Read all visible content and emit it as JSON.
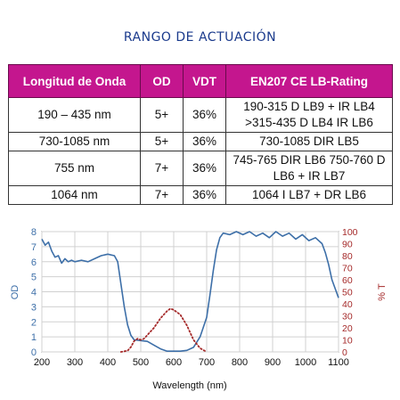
{
  "title": "RANGO DE ACTUACIÓN",
  "table": {
    "headers": [
      "Longitud de Onda",
      "OD",
      "VDT",
      "EN207 CE LB-Rating"
    ],
    "rows": [
      {
        "wavelength": "190 – 435 nm",
        "od": "5+",
        "vdt": "36%",
        "rating": "190-315 D LB9 + IR LB4 >315-435 D LB4 IR LB6"
      },
      {
        "wavelength": "730-1085 nm",
        "od": "5+",
        "vdt": "36%",
        "rating": "730-1085 DIR LB5"
      },
      {
        "wavelength": "755 nm",
        "od": "7+",
        "vdt": "36%",
        "rating": "745-765 DIR LB6 750-760 D LB6 + IR LB7"
      },
      {
        "wavelength": "1064 nm",
        "od": "7+",
        "vdt": "36%",
        "rating": "1064 I LB7 + DR LB6"
      }
    ]
  },
  "chart_data": {
    "type": "line",
    "title": "",
    "xlabel": "Wavelength (nm)",
    "ylabel": "OD",
    "y2label": "% T",
    "xlim": [
      200,
      1100
    ],
    "ylim": [
      0,
      8
    ],
    "y2lim": [
      0,
      100
    ],
    "x_ticks": [
      200,
      300,
      400,
      500,
      600,
      700,
      800,
      900,
      1000,
      1100
    ],
    "y_ticks": [
      0,
      1,
      2,
      3,
      4,
      5,
      6,
      7,
      8
    ],
    "y2_ticks": [
      0,
      10,
      20,
      30,
      40,
      50,
      60,
      70,
      80,
      90,
      100
    ],
    "grid": true,
    "series": [
      {
        "axis": "left",
        "style": "solid",
        "color": "#3d6fa8",
        "points": [
          [
            200,
            7.5
          ],
          [
            210,
            7.1
          ],
          [
            220,
            7.3
          ],
          [
            230,
            6.7
          ],
          [
            240,
            6.3
          ],
          [
            250,
            6.4
          ],
          [
            260,
            5.9
          ],
          [
            270,
            6.2
          ],
          [
            280,
            6.0
          ],
          [
            290,
            6.1
          ],
          [
            300,
            6.0
          ],
          [
            320,
            6.1
          ],
          [
            340,
            6.0
          ],
          [
            360,
            6.2
          ],
          [
            380,
            6.4
          ],
          [
            400,
            6.5
          ],
          [
            420,
            6.4
          ],
          [
            430,
            6.0
          ],
          [
            440,
            4.5
          ],
          [
            450,
            3.0
          ],
          [
            460,
            1.8
          ],
          [
            470,
            1.1
          ],
          [
            480,
            0.8
          ],
          [
            500,
            0.75
          ],
          [
            520,
            0.7
          ],
          [
            540,
            0.45
          ],
          [
            560,
            0.2
          ],
          [
            580,
            0.05
          ],
          [
            600,
            0.05
          ],
          [
            620,
            0.05
          ],
          [
            640,
            0.1
          ],
          [
            660,
            0.3
          ],
          [
            680,
            1.0
          ],
          [
            700,
            2.3
          ],
          [
            710,
            3.8
          ],
          [
            720,
            5.4
          ],
          [
            730,
            6.8
          ],
          [
            740,
            7.6
          ],
          [
            750,
            7.9
          ],
          [
            770,
            7.8
          ],
          [
            790,
            8.0
          ],
          [
            810,
            7.8
          ],
          [
            830,
            8.0
          ],
          [
            850,
            7.7
          ],
          [
            870,
            7.9
          ],
          [
            890,
            7.6
          ],
          [
            910,
            8.0
          ],
          [
            930,
            7.7
          ],
          [
            950,
            7.9
          ],
          [
            970,
            7.5
          ],
          [
            990,
            7.8
          ],
          [
            1010,
            7.4
          ],
          [
            1030,
            7.6
          ],
          [
            1050,
            7.2
          ],
          [
            1060,
            6.6
          ],
          [
            1070,
            5.8
          ],
          [
            1080,
            4.8
          ],
          [
            1090,
            4.2
          ],
          [
            1100,
            3.6
          ]
        ]
      },
      {
        "axis": "right",
        "style": "dotted",
        "color": "#a52a2a",
        "points": [
          [
            440,
            0
          ],
          [
            460,
            1
          ],
          [
            470,
            4
          ],
          [
            480,
            9
          ],
          [
            490,
            11
          ],
          [
            500,
            10
          ],
          [
            510,
            11
          ],
          [
            520,
            14
          ],
          [
            540,
            20
          ],
          [
            560,
            28
          ],
          [
            580,
            34
          ],
          [
            590,
            36
          ],
          [
            600,
            35
          ],
          [
            620,
            31
          ],
          [
            640,
            22
          ],
          [
            660,
            10
          ],
          [
            680,
            3
          ],
          [
            700,
            0
          ]
        ]
      }
    ]
  }
}
